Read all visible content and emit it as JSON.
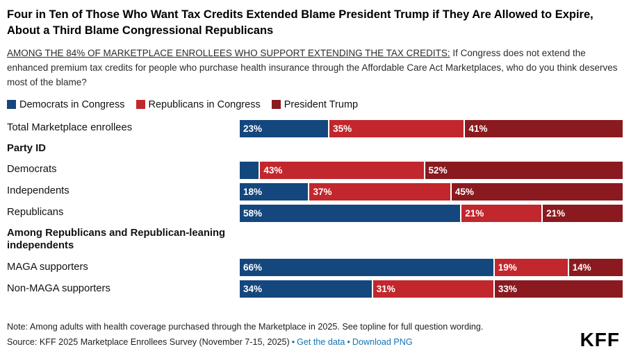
{
  "chart_data": {
    "type": "bar",
    "stacked": true,
    "orientation": "horizontal",
    "title": "Four in Ten of Those Who Want Tax Credits Extended Blame President Trump if They Are Allowed to Expire, About a Third Blame Congressional Republicans",
    "series": [
      "Democrats in Congress",
      "Republicans in Congress",
      "President Trump"
    ],
    "colors": [
      "#14477D",
      "#C1272D",
      "#8A1A1F"
    ],
    "value_suffix": "%",
    "xlim": [
      0,
      100
    ],
    "rows": [
      {
        "kind": "bar",
        "label": "Total Marketplace enrollees",
        "values": [
          23,
          35,
          41
        ],
        "labels": [
          "23%",
          "35%",
          "41%"
        ]
      },
      {
        "kind": "header",
        "label": "Party ID"
      },
      {
        "kind": "bar",
        "label": "Democrats",
        "values": [
          5,
          43,
          52
        ],
        "labels": [
          "",
          "43%",
          "52%"
        ]
      },
      {
        "kind": "bar",
        "label": "Independents",
        "values": [
          18,
          37,
          45
        ],
        "labels": [
          "18%",
          "37%",
          "45%"
        ]
      },
      {
        "kind": "bar",
        "label": "Republicans",
        "values": [
          58,
          21,
          21
        ],
        "labels": [
          "58%",
          "21%",
          "21%"
        ]
      },
      {
        "kind": "header",
        "label": "Among Republicans and Republican-leaning independents"
      },
      {
        "kind": "bar",
        "label": "MAGA supporters",
        "values": [
          66,
          19,
          14
        ],
        "labels": [
          "66%",
          "19%",
          "14%"
        ]
      },
      {
        "kind": "bar",
        "label": "Non-MAGA supporters",
        "values": [
          34,
          31,
          33
        ],
        "labels": [
          "34%",
          "31%",
          "33%"
        ]
      }
    ]
  },
  "subtitle": {
    "emphasis": "AMONG THE 84% OF MARKETPLACE ENROLLEES WHO SUPPORT EXTENDING THE TAX CREDITS:",
    "rest": " If Congress does not extend the enhanced premium tax credits for people who purchase health insurance through the Affordable Care Act Marketplaces, who do you think deserves most of the blame?"
  },
  "footer": {
    "note": "Note: Among adults with health coverage purchased through the Marketplace in 2025. See topline for full question wording.",
    "source": "Source: KFF 2025 Marketplace Enrollees Survey (November 7-15, 2025)",
    "separator": "•",
    "link_get_data": "Get the data",
    "link_download": "Download PNG"
  },
  "logo": "KFF"
}
